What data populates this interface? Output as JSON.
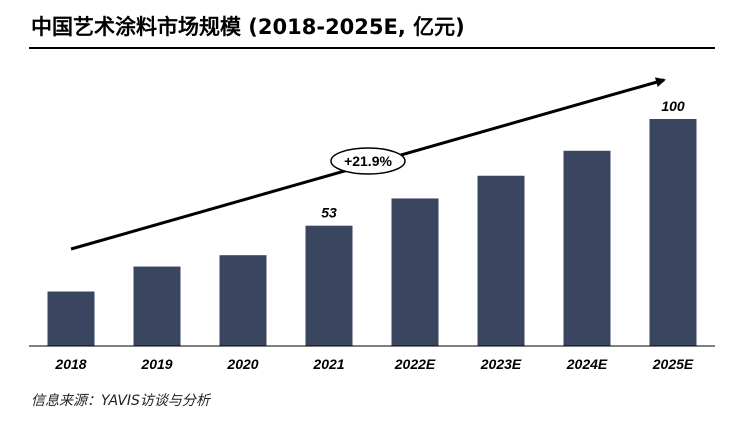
{
  "title": "中国艺术涂料市场规模 (2018-2025E, 亿元)",
  "source": "信息来源：YAVIS访谈与分析",
  "colors": {
    "bar": "#3a4660",
    "text": "#000000",
    "rule": "#000000"
  },
  "annotation": {
    "cagr_label": "+21.9%"
  },
  "chart_data": {
    "type": "bar",
    "title": "中国艺术涂料市场规模 (2018-2025E, 亿元)",
    "xlabel": "",
    "ylabel": "",
    "categories": [
      "2018",
      "2019",
      "2020",
      "2021",
      "2022E",
      "2023E",
      "2024E",
      "2025E"
    ],
    "values": [
      24,
      35,
      40,
      53,
      65,
      75,
      86,
      100
    ],
    "data_labels": [
      "",
      "",
      "",
      "53",
      "",
      "",
      "",
      "100"
    ],
    "ylim": [
      0,
      100
    ],
    "grid": false,
    "legend": "none"
  }
}
